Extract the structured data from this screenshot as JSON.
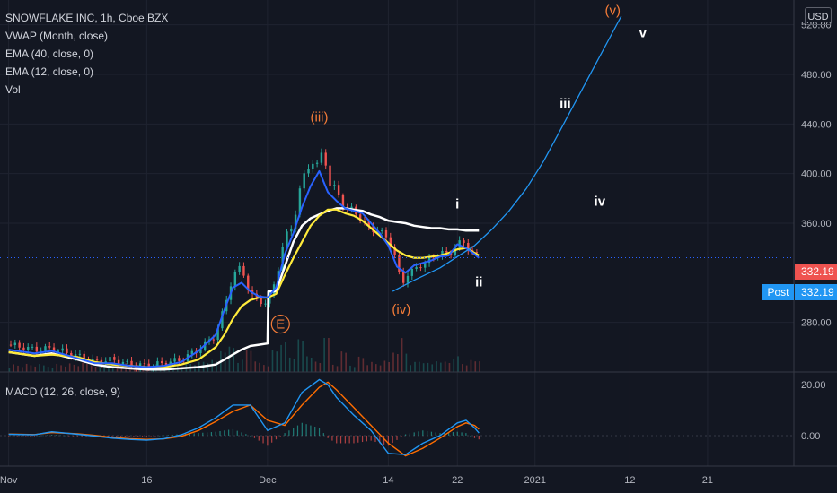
{
  "header": {
    "title": "SNOWFLAKE INC, 1h, Cboe BZX",
    "indicators": [
      "VWAP (Month, close)",
      "EMA (40, close, 0)",
      "EMA (12, close, 0)",
      "Vol"
    ],
    "currency": "USD"
  },
  "macd_label": "MACD (12, 26, close, 9)",
  "price_tag": {
    "value": "332.19",
    "post_label": "Post",
    "post_value": "332.19"
  },
  "colors": {
    "background": "#131722",
    "up": "#26a69a",
    "down": "#ef5350",
    "vwap": "#ffffff",
    "ema40": "#ffeb3b",
    "ema12": "#2962ff",
    "projection": "#2196f3",
    "wave_orange": "#f57c38",
    "price_line": "#2962ff",
    "macd_line": "#2196f3",
    "signal_line": "#ff6d00"
  },
  "chart_data": [
    {
      "type": "line",
      "panel": "price",
      "ylim": [
        240,
        540
      ],
      "y_ticks": [
        "520.00",
        "480.00",
        "440.00",
        "400.00",
        "360.00",
        "280.00"
      ],
      "x_ticks": [
        "Nov",
        "16",
        "Dec",
        "14",
        "22",
        "2021",
        "12",
        "21"
      ],
      "x_tick_days": [
        0,
        16,
        30,
        44,
        52,
        61,
        72,
        81
      ],
      "xlim_days": [
        -1,
        91
      ],
      "last_price": 332.19,
      "series": [
        {
          "key": "price",
          "x": [
            0,
            3,
            5,
            8,
            10,
            12,
            14,
            16,
            18,
            20,
            22,
            24,
            25,
            26,
            27,
            28,
            29,
            30,
            31,
            32,
            33,
            34,
            35,
            36,
            36.5,
            37,
            38,
            39,
            40,
            41,
            42,
            43,
            44,
            45,
            45.5,
            46,
            47,
            48,
            49,
            50,
            51,
            52,
            53,
            54,
            54.5
          ],
          "values": [
            262,
            258,
            259,
            253,
            248,
            250,
            246,
            245,
            247,
            250,
            258,
            270,
            292,
            318,
            325,
            302,
            298,
            295,
            316,
            348,
            360,
            395,
            410,
            405,
            428,
            390,
            388,
            370,
            372,
            360,
            356,
            353,
            348,
            328,
            309,
            318,
            322,
            328,
            330,
            338,
            333,
            345,
            342,
            336,
            332
          ]
        },
        {
          "key": "vwap",
          "x": [
            0,
            3,
            5,
            8,
            10,
            12,
            14,
            16,
            18,
            20,
            22,
            24,
            25,
            26,
            27,
            28,
            29,
            30,
            30.1,
            31,
            32,
            33,
            34,
            35,
            36,
            37,
            38,
            39,
            40,
            41,
            42,
            43,
            44,
            45,
            46,
            47,
            48,
            49,
            50,
            51,
            52,
            53,
            54,
            54.5
          ],
          "values": [
            256,
            253,
            255,
            250,
            246,
            244,
            243,
            242,
            242,
            243,
            244,
            246,
            250,
            254,
            258,
            261,
            262,
            263,
            305,
            305,
            325,
            345,
            358,
            364,
            367,
            370,
            372,
            372,
            371,
            370,
            367,
            365,
            362,
            361,
            360,
            358,
            357,
            356,
            356,
            355,
            355,
            354,
            354,
            354
          ]
        },
        {
          "key": "ema40",
          "x": [
            0,
            3,
            5,
            8,
            10,
            12,
            14,
            16,
            18,
            20,
            22,
            24,
            25,
            26,
            27,
            28,
            29,
            30,
            31,
            32,
            33,
            34,
            35,
            36,
            37,
            38,
            39,
            40,
            41,
            42,
            43,
            44,
            45,
            46,
            47,
            48,
            49,
            50,
            51,
            52,
            53,
            54,
            54.5
          ],
          "values": [
            256,
            253,
            254,
            252,
            248,
            246,
            245,
            244,
            244,
            246,
            250,
            260,
            270,
            283,
            293,
            298,
            300,
            300,
            303,
            318,
            332,
            345,
            358,
            366,
            371,
            371,
            368,
            366,
            362,
            356,
            350,
            344,
            338,
            334,
            332,
            332,
            333,
            334,
            336,
            339,
            340,
            336,
            334
          ]
        },
        {
          "key": "ema12",
          "x": [
            0,
            3,
            5,
            8,
            10,
            12,
            14,
            16,
            18,
            20,
            22,
            24,
            25,
            26,
            27,
            28,
            29,
            30,
            31,
            32,
            33,
            34,
            35,
            36,
            37,
            38,
            39,
            40,
            41,
            42,
            43,
            44,
            45,
            46,
            47,
            48,
            49,
            50,
            51,
            52,
            53,
            54,
            54.5
          ],
          "values": [
            258,
            255,
            257,
            251,
            247,
            247,
            245,
            244,
            245,
            248,
            257,
            270,
            290,
            308,
            312,
            305,
            301,
            300,
            308,
            335,
            352,
            373,
            390,
            402,
            385,
            378,
            372,
            370,
            368,
            360,
            352,
            342,
            325,
            320,
            326,
            328,
            330,
            333,
            334,
            343,
            340,
            335,
            332
          ]
        },
        {
          "key": "projection",
          "x": [
            44.5,
            47,
            50,
            52,
            54,
            56,
            58,
            60,
            62,
            64,
            66,
            68,
            70,
            71
          ],
          "values": [
            305,
            314,
            324,
            333,
            342,
            355,
            370,
            388,
            410,
            436,
            462,
            488,
            514,
            527
          ]
        }
      ],
      "annotations": [
        {
          "text": "(iii)",
          "x": 36,
          "y": 442,
          "color": "orange"
        },
        {
          "text": "(iv)",
          "x": 45.5,
          "y": 287,
          "color": "orange"
        },
        {
          "text": "(v)",
          "x": 70,
          "y": 528,
          "color": "orange"
        },
        {
          "text": "i",
          "x": 52,
          "y": 372,
          "color": "white"
        },
        {
          "text": "ii",
          "x": 54.5,
          "y": 309,
          "color": "white"
        },
        {
          "text": "iii",
          "x": 64.5,
          "y": 453,
          "color": "white"
        },
        {
          "text": "iv",
          "x": 68.5,
          "y": 374,
          "color": "white"
        },
        {
          "text": "v",
          "x": 73.5,
          "y": 510,
          "color": "white"
        },
        {
          "text": "E",
          "x": 31.5,
          "y": 275,
          "color": "orange",
          "circled": true
        }
      ]
    },
    {
      "type": "line",
      "panel": "macd",
      "ylim": [
        -12,
        25
      ],
      "y_ticks": [
        "20.00",
        "0.00"
      ],
      "series": [
        {
          "name": "MACD",
          "x": [
            0,
            3,
            5,
            8,
            10,
            12,
            14,
            16,
            18,
            20,
            22,
            24,
            26,
            28,
            30,
            32,
            34,
            36,
            37,
            38,
            40,
            42,
            44,
            46,
            48,
            50,
            52,
            53,
            54,
            54.5
          ],
          "values": [
            0.5,
            0.3,
            1.5,
            0.5,
            -0.2,
            -1.0,
            -1.5,
            -1.8,
            -1.2,
            0.3,
            3.0,
            7.0,
            12.0,
            12.0,
            2.0,
            5.0,
            17.0,
            22.0,
            20.0,
            15.0,
            8.0,
            2.0,
            -7.0,
            -7.5,
            -3.0,
            0.0,
            5.0,
            6.0,
            3.0,
            1.0
          ]
        },
        {
          "name": "Signal",
          "x": [
            0,
            3,
            5,
            8,
            10,
            12,
            14,
            16,
            18,
            20,
            22,
            24,
            26,
            28,
            30,
            32,
            34,
            36,
            37,
            38,
            40,
            42,
            44,
            46,
            48,
            50,
            52,
            53,
            54,
            54.5
          ],
          "values": [
            0.6,
            0.4,
            1.2,
            0.7,
            0.1,
            -0.7,
            -1.2,
            -1.5,
            -1.3,
            -0.3,
            2.0,
            5.5,
            9.5,
            12.0,
            6.0,
            4.0,
            12.0,
            19.0,
            21.0,
            18.0,
            11.0,
            4.0,
            -3.0,
            -8.0,
            -5.0,
            -1.0,
            3.5,
            5.0,
            4.0,
            2.5
          ]
        }
      ]
    }
  ]
}
